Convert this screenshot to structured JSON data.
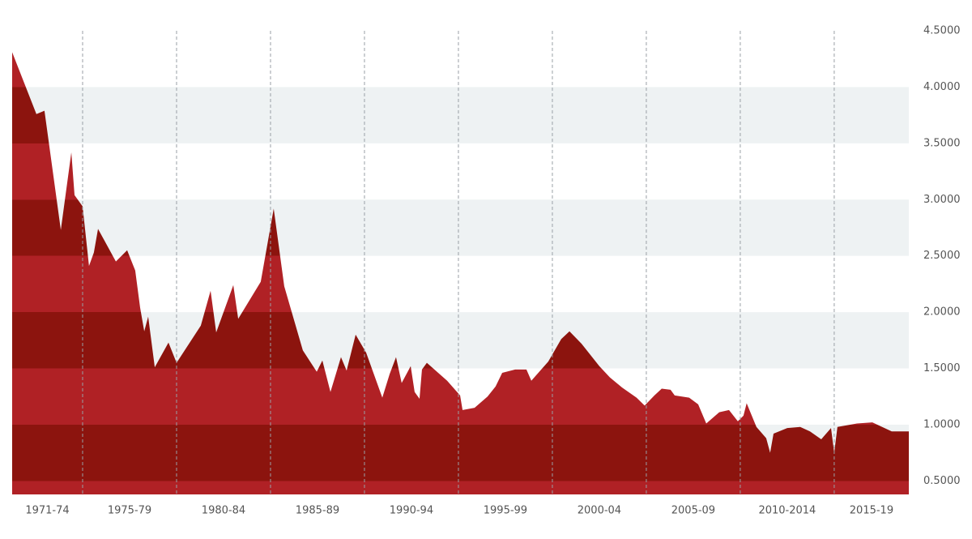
{
  "chart_data": {
    "type": "area",
    "x": [
      1971.25,
      1972.54,
      1972.97,
      1973.84,
      1974.4,
      1974.57,
      1975.0,
      1975.34,
      1975.6,
      1975.82,
      1976.77,
      1977.37,
      1977.8,
      1978.06,
      1978.28,
      1978.49,
      1978.84,
      1979.57,
      1980.0,
      1981.29,
      1981.81,
      1982.11,
      1983.02,
      1983.28,
      1984.48,
      1985.17,
      1985.73,
      1986.72,
      1987.46,
      1987.76,
      1988.19,
      1988.75,
      1989.05,
      1989.53,
      1990.09,
      1990.95,
      1991.34,
      1991.68,
      1991.98,
      1992.46,
      1992.67,
      1992.93,
      1993.06,
      1993.32,
      1994.4,
      1995.09,
      1995.22,
      1995.86,
      1996.55,
      1996.98,
      1997.33,
      1998.02,
      1998.62,
      1998.88,
      1999.78,
      2000.47,
      2000.91,
      2001.55,
      2002.5,
      2003.06,
      2003.71,
      2004.48,
      2004.91,
      2005.43,
      2005.82,
      2006.29,
      2006.51,
      2007.28,
      2007.76,
      2008.19,
      2008.88,
      2009.4,
      2009.87,
      2010.17,
      2010.34,
      2010.86,
      2011.38,
      2011.59,
      2011.77,
      2012.5,
      2013.19,
      2013.71,
      2014.31,
      2014.83,
      2015.0,
      2015.17,
      2016.21,
      2017.03,
      2018.06,
      2018.97
    ],
    "values": [
      4.31,
      3.76,
      3.79,
      2.73,
      3.42,
      3.04,
      2.94,
      2.41,
      2.53,
      2.74,
      2.45,
      2.55,
      2.37,
      2.04,
      1.83,
      1.96,
      1.51,
      1.73,
      1.55,
      1.88,
      2.19,
      1.82,
      2.24,
      1.94,
      2.27,
      2.92,
      2.23,
      1.66,
      1.47,
      1.57,
      1.29,
      1.6,
      1.48,
      1.8,
      1.64,
      1.24,
      1.45,
      1.6,
      1.37,
      1.52,
      1.29,
      1.23,
      1.49,
      1.55,
      1.39,
      1.26,
      1.13,
      1.15,
      1.25,
      1.34,
      1.46,
      1.49,
      1.49,
      1.39,
      1.56,
      1.76,
      1.83,
      1.72,
      1.52,
      1.42,
      1.33,
      1.24,
      1.17,
      1.26,
      1.32,
      1.31,
      1.26,
      1.24,
      1.18,
      1.01,
      1.11,
      1.13,
      1.03,
      1.08,
      1.19,
      0.98,
      0.88,
      0.75,
      0.92,
      0.97,
      0.98,
      0.94,
      0.87,
      0.97,
      0.75,
      0.98,
      1.01,
      1.02,
      0.94,
      0.94
    ],
    "color": "#b02125",
    "band_color": "#8c140e",
    "grid": "bands",
    "grid_color": "#eef2f3",
    "xlim": [
      1971.25,
      2018.97
    ],
    "xticks": [
      1975,
      1980,
      1985,
      1990,
      1995,
      2000,
      2005,
      2010,
      2015
    ],
    "categories": [
      "1971-74",
      "1975-79",
      "1980-84",
      "1985-89",
      "1990-94",
      "1995-99",
      "2000-04",
      "2005-09",
      "2010-2014",
      "2015-19"
    ],
    "ylim": [
      0.38,
      4.5
    ],
    "yticks": [
      {
        "value": 4.5,
        "label": "4.5000"
      },
      {
        "value": 4.0,
        "label": "4.0000"
      },
      {
        "value": 3.5,
        "label": "3.5000"
      },
      {
        "value": 3.0,
        "label": "3.0000"
      },
      {
        "value": 2.5,
        "label": "2.5000"
      },
      {
        "value": 2.0,
        "label": "2.0000"
      },
      {
        "value": 1.5,
        "label": "1.5000"
      },
      {
        "value": 1.0,
        "label": "1.0000"
      },
      {
        "value": 0.5,
        "label": "0.5000"
      }
    ]
  }
}
